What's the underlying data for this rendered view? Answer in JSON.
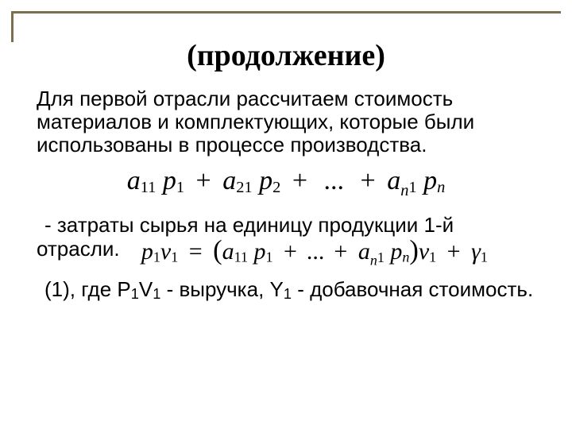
{
  "title": "(продолжение)",
  "p1": "Для первой отрасли рассчитаем стоимость материалов и комплектующих, которые были использованы в процессе производства.",
  "eq1": {
    "t1": "a",
    "s1": "11",
    "t2": "p",
    "s2": "1",
    "plus": "+",
    "t3": "a",
    "s3": "21",
    "t4": "p",
    "s4": "2",
    "dots": "...",
    "t5": "a",
    "s5a": "n",
    "s5b": "1",
    "t6": "p",
    "s6a": "n"
  },
  "p2": " - затраты сырья на единицу продукции 1-й отрасли.",
  "eq2": {
    "lhs_p": "p",
    "lhs_p_s": "1",
    "lhs_v": "v",
    "lhs_v_s": "1",
    "eq": "=",
    "lpar": "(",
    "rpar": ")",
    "a1": "a",
    "a1s": "11",
    "pp1": "p",
    "pp1s": "1",
    "plus": "+",
    "dots": "...",
    "an": "a",
    "ans_a": "n",
    "ans_b": "1",
    "ppn": "p",
    "ppns": "n",
    "rv": "v",
    "rvs": "1",
    "gamma": "γ",
    "gs": "1"
  },
  "p3_a": " (1), где  P",
  "p3_a_sub": "1",
  "p3_b": "V",
  "p3_b_sub": "1",
  "p3_c": " - выручка, Y",
  "p3_c_sub": "1",
  "p3_d": " -  добавочная стоимость.",
  "colors": {
    "rule": "#7a6f4e",
    "text": "#000000",
    "bg": "#ffffff"
  },
  "fonts": {
    "title_family": "Garamond serif",
    "title_size_pt": 28,
    "body_family": "Arial",
    "body_size_pt": 20,
    "math_family": "Times New Roman italic"
  }
}
